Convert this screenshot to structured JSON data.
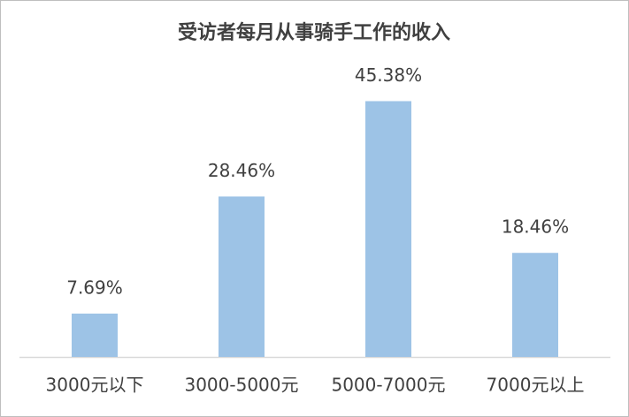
{
  "chart_data": {
    "type": "bar",
    "title": "受访者每月从事骑手工作的收入",
    "categories": [
      "3000元以下",
      "3000-5000元",
      "5000-7000元",
      "7000元以上"
    ],
    "values": [
      7.69,
      28.46,
      45.38,
      18.46
    ],
    "value_labels": [
      "7.69%",
      "28.46%",
      "45.38%",
      "18.46%"
    ],
    "color": "#9dc3e6",
    "ylim": [
      0,
      50
    ]
  }
}
